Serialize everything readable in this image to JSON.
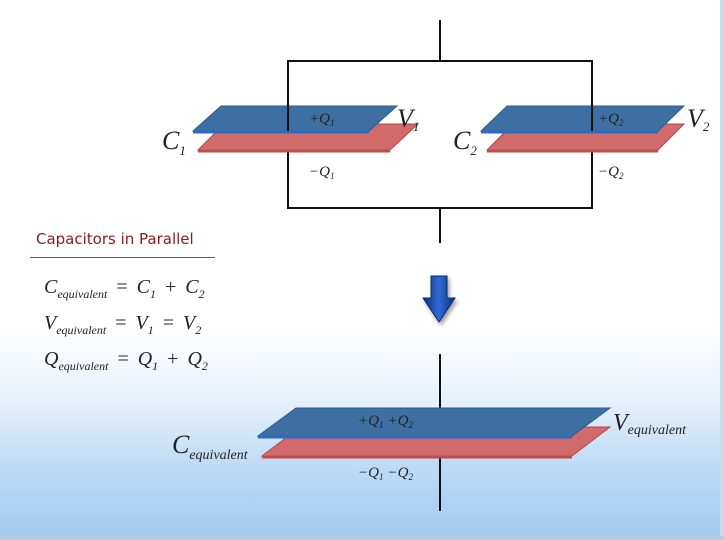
{
  "panel": {
    "title": "Capacitors in Parallel"
  },
  "equations": [
    {
      "lhs": "C",
      "lhs_sub": "equivalent",
      "t1": "C",
      "t1_sub": "1",
      "op": "+",
      "t2": "C",
      "t2_sub": "2",
      "op2": "",
      "t3": "",
      "t3_sub": ""
    },
    {
      "lhs": "V",
      "lhs_sub": "equivalent",
      "t1": "V",
      "t1_sub": "1",
      "op": "=",
      "t2": "V",
      "t2_sub": "2",
      "op2": "",
      "t3": "",
      "t3_sub": ""
    },
    {
      "lhs": "Q",
      "lhs_sub": "equivalent",
      "t1": "Q",
      "t1_sub": "1",
      "op": "+",
      "t2": "Q",
      "t2_sub": "2",
      "op2": "",
      "t3": "",
      "t3_sub": ""
    }
  ],
  "circuit": {
    "c1": {
      "label": "C",
      "sub": "1",
      "v_label": "V",
      "v_sub": "1",
      "q_top": "+Q",
      "q_top_sub": "1",
      "q_bottom": "−Q",
      "q_bottom_sub": "1"
    },
    "c2": {
      "label": "C",
      "sub": "2",
      "v_label": "V",
      "v_sub": "2",
      "q_top": "+Q",
      "q_top_sub": "2",
      "q_bottom": "−Q",
      "q_bottom_sub": "2"
    },
    "ceq": {
      "label": "C",
      "sub": "equivalent",
      "v_label": "V",
      "v_sub": "equivalent",
      "q_top_a": "+Q",
      "q_top_a_sub": "1",
      "q_top_b": "+Q",
      "q_top_b_sub": "2",
      "q_bottom_a": "−Q",
      "q_bottom_a_sub": "1",
      "q_bottom_b": "−Q",
      "q_bottom_b_sub": "2"
    }
  },
  "colors": {
    "top_plate": "#3d6fa3",
    "top_plate_edge": "#2f5b8c",
    "bottom_plate": "#d16a6a",
    "bottom_plate_edge": "#b04848",
    "wire": "#111111",
    "arrow": "#1e4fb0",
    "title": "#8b1a1a"
  },
  "icons": {
    "arrow": "down-arrow-icon"
  }
}
